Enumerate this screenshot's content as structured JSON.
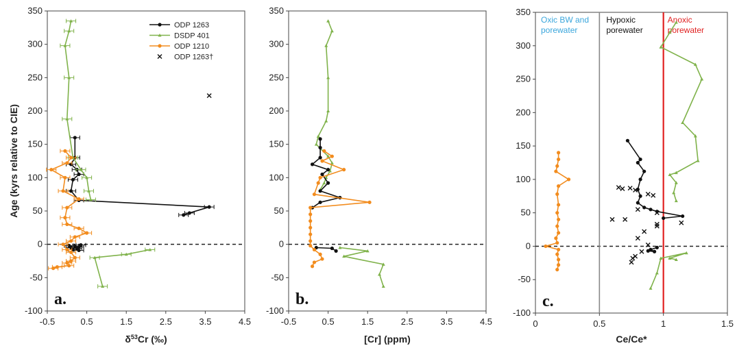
{
  "colors": {
    "black": "#111111",
    "green": "#7fb24a",
    "orange": "#f28c1e",
    "red": "#e02020",
    "blue": "#3aa6dc",
    "gray": "#888888"
  },
  "chart_data": [
    {
      "type": "scatter",
      "panel_label": "a.",
      "ylabel": "Age (kyrs relative to CIE)",
      "xlabel": "δ53Cr (‰)",
      "xlim": [
        -0.5,
        4.5
      ],
      "ylim": [
        -100,
        350
      ],
      "xticks": [
        "-0.5",
        "0.5",
        "1.5",
        "2.5",
        "3.5",
        "4.5"
      ],
      "yticks": [
        "-100",
        "-50",
        "0",
        "50",
        "100",
        "150",
        "200",
        "250",
        "300",
        "350"
      ],
      "legend": {
        "placement": "top-right",
        "entries": [
          "ODP 1263",
          "DSDP 401",
          "ODP 1210",
          "ODP 1263†"
        ]
      },
      "series": [
        {
          "name": "ODP 1263",
          "color": "black",
          "marker": "dot",
          "line": true,
          "error_bars": true,
          "points": [
            [
              0.2,
              160
            ],
            [
              0.2,
              130
            ],
            [
              0.1,
              120
            ],
            [
              0.25,
              112
            ],
            [
              0.3,
              105
            ],
            [
              0.15,
              97
            ],
            [
              0.1,
              80
            ],
            [
              0.3,
              66
            ],
            [
              3.6,
              56
            ],
            [
              3.1,
              47
            ],
            [
              2.95,
              44
            ]
          ]
        },
        {
          "name": "ODP 1263",
          "color": "black",
          "marker": "dot",
          "line": false,
          "error_bars": true,
          "points": [
            [
              0.2,
              -3
            ],
            [
              0.3,
              -4
            ],
            [
              0.1,
              -5
            ],
            [
              0.25,
              -6
            ],
            [
              0.15,
              -8
            ],
            [
              0.3,
              -9
            ],
            [
              0.05,
              -2
            ],
            [
              0.35,
              -1
            ]
          ]
        },
        {
          "name": "DSDP 401",
          "color": "green",
          "marker": "tri",
          "line": true,
          "error_bars": true,
          "points": [
            [
              0.1,
              335
            ],
            [
              0.05,
              320
            ],
            [
              -0.05,
              298
            ],
            [
              0.05,
              250
            ],
            [
              0.0,
              188
            ],
            [
              0.15,
              130
            ],
            [
              0.35,
              112
            ],
            [
              0.5,
              100
            ],
            [
              0.55,
              80
            ],
            [
              0.6,
              67
            ]
          ]
        },
        {
          "name": "DSDP 401",
          "color": "green",
          "marker": "tri",
          "line": true,
          "error_bars": true,
          "points": [
            [
              2.1,
              -8
            ],
            [
              1.5,
              -15
            ],
            [
              0.7,
              -20
            ],
            [
              0.9,
              -63
            ]
          ]
        },
        {
          "name": "ODP 1210",
          "color": "orange",
          "marker": "dot",
          "line": true,
          "error_bars": true,
          "points": [
            [
              -0.05,
              140
            ],
            [
              0.1,
              130
            ],
            [
              0.0,
              122
            ],
            [
              -0.4,
              112
            ],
            [
              -0.05,
              100
            ],
            [
              -0.1,
              80
            ],
            [
              0.3,
              68
            ],
            [
              0.0,
              55
            ],
            [
              -0.05,
              40
            ],
            [
              0.0,
              30
            ],
            [
              0.3,
              24
            ],
            [
              0.5,
              17
            ],
            [
              0.2,
              11
            ],
            [
              0.1,
              5
            ],
            [
              -0.1,
              0
            ],
            [
              0.0,
              -8
            ],
            [
              0.1,
              -12
            ],
            [
              0.2,
              -20
            ],
            [
              0.1,
              -25
            ],
            [
              0.0,
              -28
            ],
            [
              0.05,
              -32
            ],
            [
              -0.25,
              -34
            ],
            [
              -0.35,
              -36
            ]
          ]
        },
        {
          "name": "ODP 1263†",
          "color": "black",
          "marker": "x",
          "line": false,
          "error_bars": false,
          "points": [
            [
              3.6,
              223
            ]
          ]
        }
      ]
    },
    {
      "type": "line",
      "panel_label": "b.",
      "xlabel": "[Cr] (ppm)",
      "xlim": [
        -0.5,
        4.5
      ],
      "ylim": [
        -100,
        350
      ],
      "xticks": [
        "-0.5",
        "0.5",
        "1.5",
        "2.5",
        "3.5",
        "4.5"
      ],
      "yticks": [
        "-100",
        "-50",
        "0",
        "50",
        "100",
        "150",
        "200",
        "250",
        "300",
        "350"
      ],
      "series": [
        {
          "name": "DSDP 401",
          "color": "green",
          "marker": "tri",
          "points": [
            [
              0.5,
              335
            ],
            [
              0.6,
              320
            ],
            [
              0.45,
              298
            ],
            [
              0.5,
              250
            ],
            [
              0.5,
              200
            ],
            [
              0.45,
              185
            ],
            [
              0.25,
              162
            ],
            [
              0.2,
              150
            ],
            [
              0.5,
              132
            ],
            [
              0.6,
              122
            ],
            [
              0.55,
              110
            ],
            [
              0.45,
              100
            ],
            [
              0.4,
              92
            ],
            [
              0.3,
              82
            ]
          ]
        },
        {
          "name": "DSDP 401",
          "color": "green",
          "marker": "tri",
          "points": [
            [
              0.8,
              -5
            ],
            [
              1.5,
              -10
            ],
            [
              0.9,
              -18
            ],
            [
              1.9,
              -30
            ],
            [
              1.8,
              -45
            ],
            [
              1.9,
              -63
            ]
          ]
        },
        {
          "name": "ODP 1263",
          "color": "black",
          "marker": "dot",
          "points": [
            [
              0.3,
              158
            ],
            [
              0.3,
              145
            ],
            [
              0.3,
              130
            ],
            [
              0.1,
              120
            ],
            [
              0.5,
              112
            ],
            [
              0.35,
              105
            ],
            [
              0.5,
              92
            ],
            [
              0.3,
              80
            ],
            [
              0.8,
              70
            ],
            [
              0.3,
              63
            ],
            [
              0.1,
              55
            ]
          ]
        },
        {
          "name": "ODP 1263",
          "color": "black",
          "marker": "dot",
          "points": [
            [
              0.2,
              -5
            ],
            [
              0.6,
              -6
            ],
            [
              0.7,
              -10
            ]
          ]
        },
        {
          "name": "ODP 1210",
          "color": "orange",
          "marker": "dot",
          "points": [
            [
              0.4,
              140
            ],
            [
              0.6,
              132
            ],
            [
              0.35,
              125
            ],
            [
              0.9,
              112
            ],
            [
              0.3,
              100
            ],
            [
              0.25,
              92
            ],
            [
              0.15,
              75
            ],
            [
              1.55,
              63
            ],
            [
              0.05,
              55
            ],
            [
              0.05,
              45
            ],
            [
              0.05,
              35
            ],
            [
              0.05,
              25
            ],
            [
              0.05,
              15
            ],
            [
              0.05,
              5
            ],
            [
              0.05,
              -2
            ],
            [
              0.15,
              -8
            ],
            [
              0.3,
              -15
            ],
            [
              0.35,
              -22
            ],
            [
              0.15,
              -27
            ],
            [
              0.1,
              -33
            ]
          ]
        }
      ]
    },
    {
      "type": "line",
      "panel_label": "c.",
      "xlabel": "Ce/Ce*",
      "xlim": [
        0,
        1.5
      ],
      "ylim": [
        -100,
        350
      ],
      "xticks": [
        "0",
        "0.5",
        "1",
        "1.5"
      ],
      "yticks": [
        "-100",
        "-50",
        "0",
        "50",
        "100",
        "150",
        "200",
        "250",
        "300",
        "350"
      ],
      "zones": [
        {
          "label_lines": [
            "Oxic BW and",
            "porewater"
          ],
          "color": "blue"
        },
        {
          "label_lines": [
            "Hypoxic",
            "porewater"
          ],
          "color": "black"
        },
        {
          "label_lines": [
            "Anoxic",
            "porewater"
          ],
          "color": "red"
        }
      ],
      "vlines": [
        {
          "x": 0.5,
          "color": "gray"
        },
        {
          "x": 1.0,
          "color": "red"
        }
      ],
      "series": [
        {
          "name": "DSDP 401",
          "color": "green",
          "marker": "tri",
          "points": [
            [
              1.1,
              335
            ],
            [
              1.05,
              320
            ],
            [
              0.98,
              298
            ],
            [
              1.25,
              272
            ],
            [
              1.3,
              250
            ],
            [
              1.15,
              185
            ],
            [
              1.25,
              165
            ],
            [
              1.27,
              128
            ],
            [
              1.1,
              110
            ],
            [
              1.05,
              107
            ],
            [
              1.1,
              95
            ],
            [
              1.08,
              80
            ],
            [
              1.1,
              68
            ]
          ]
        },
        {
          "name": "DSDP 401",
          "color": "green",
          "marker": "tri",
          "points": [
            [
              1.1,
              -20
            ],
            [
              1.05,
              -18
            ],
            [
              1.18,
              -10
            ],
            [
              0.98,
              -18
            ],
            [
              0.95,
              -40
            ],
            [
              0.9,
              -63
            ]
          ]
        },
        {
          "name": "ODP 1263",
          "color": "black",
          "marker": "dot",
          "points": [
            [
              0.72,
              158
            ],
            [
              0.82,
              130
            ],
            [
              0.8,
              125
            ],
            [
              0.85,
              112
            ],
            [
              0.82,
              100
            ],
            [
              0.8,
              85
            ],
            [
              0.82,
              75
            ],
            [
              0.8,
              65
            ],
            [
              0.85,
              58
            ],
            [
              0.9,
              55
            ],
            [
              0.95,
              52
            ],
            [
              1.15,
              45
            ],
            [
              1.0,
              42
            ]
          ]
        },
        {
          "name": "ODP 1263",
          "color": "black",
          "marker": "dot",
          "points": [
            [
              0.95,
              -2
            ],
            [
              0.9,
              -5
            ],
            [
              0.93,
              -8
            ],
            [
              0.88,
              -7
            ]
          ]
        },
        {
          "name": "ODP 1263†",
          "color": "black",
          "marker": "x",
          "points": [
            [
              0.65,
              88
            ],
            [
              0.68,
              86
            ],
            [
              0.74,
              87
            ],
            [
              0.78,
              84
            ],
            [
              0.88,
              78
            ],
            [
              0.92,
              76
            ],
            [
              0.8,
              55
            ],
            [
              0.95,
              50
            ],
            [
              0.6,
              40
            ],
            [
              0.7,
              40
            ],
            [
              0.95,
              30
            ],
            [
              0.95,
              33
            ],
            [
              1.14,
              35
            ],
            [
              0.85,
              22
            ],
            [
              0.8,
              12
            ],
            [
              0.88,
              2
            ],
            [
              0.83,
              -8
            ],
            [
              0.78,
              -15
            ],
            [
              0.76,
              -18
            ],
            [
              0.75,
              -24
            ]
          ]
        },
        {
          "name": "ODP 1210",
          "color": "orange",
          "marker": "dot",
          "points": [
            [
              0.18,
              140
            ],
            [
              0.18,
              130
            ],
            [
              0.17,
              120
            ],
            [
              0.16,
              112
            ],
            [
              0.26,
              100
            ],
            [
              0.18,
              90
            ],
            [
              0.17,
              78
            ],
            [
              0.18,
              62
            ],
            [
              0.17,
              50
            ],
            [
              0.18,
              40
            ],
            [
              0.17,
              30
            ],
            [
              0.18,
              20
            ],
            [
              0.16,
              12
            ],
            [
              0.17,
              5
            ],
            [
              0.08,
              0
            ],
            [
              0.18,
              -5
            ],
            [
              0.17,
              -12
            ],
            [
              0.18,
              -20
            ],
            [
              0.18,
              -28
            ],
            [
              0.17,
              -35
            ]
          ]
        }
      ]
    }
  ]
}
